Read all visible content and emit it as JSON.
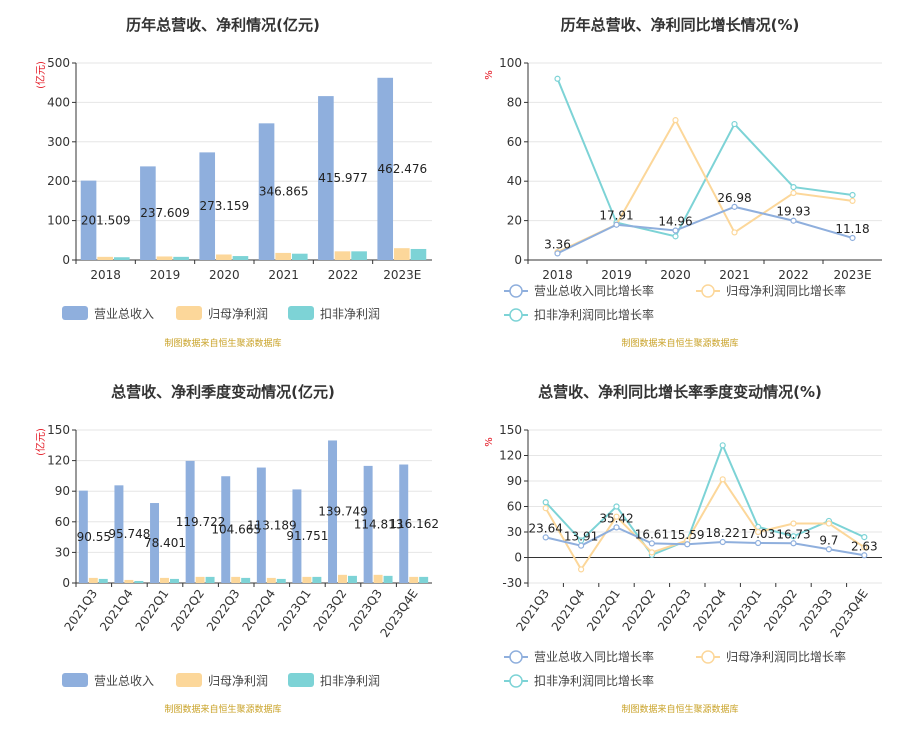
{
  "legends": {
    "bar": [
      "营业总收入",
      "归母净利润",
      "扣非净利润"
    ],
    "line": [
      "营业总收入同比增长率",
      "归母净利润同比增长率",
      "扣非净利润同比增长率"
    ]
  },
  "source_text": "制图数据来自恒生聚源数据库",
  "colors": {
    "revenue": "#8fafdd",
    "net_profit": "#fcd79a",
    "deducted_profit": "#7dd3d6",
    "axis": "#333333",
    "grid": "#e6e6e6",
    "unit": "#e3131f",
    "source": "#c9a227"
  },
  "chart_data": [
    {
      "type": "bar",
      "title": "历年总营收、净利情况(亿元)",
      "y_unit": "(亿元)",
      "categories": [
        "2018",
        "2019",
        "2020",
        "2021",
        "2022",
        "2023E"
      ],
      "ylim": [
        0,
        500
      ],
      "yticks": [
        0,
        100,
        200,
        300,
        400,
        500
      ],
      "grid": true,
      "legend_position": "bottom",
      "series": [
        {
          "name": "营业总收入",
          "values": [
            201.509,
            237.609,
            273.159,
            346.865,
            415.977,
            462.476
          ],
          "labels": [
            "201.509",
            "237.609",
            "273.159",
            "346.865",
            "415.977",
            "462.476"
          ]
        },
        {
          "name": "归母净利润",
          "values": [
            8,
            9,
            14,
            18,
            22,
            30
          ]
        },
        {
          "name": "扣非净利润",
          "values": [
            7,
            8,
            10,
            16,
            22,
            28
          ]
        }
      ]
    },
    {
      "type": "line",
      "title": "历年总营收、净利同比增长情况(%)",
      "y_unit": "%",
      "categories": [
        "2018",
        "2019",
        "2020",
        "2021",
        "2022",
        "2023E"
      ],
      "ylim": [
        0,
        100
      ],
      "yticks": [
        0,
        20,
        40,
        60,
        80,
        100
      ],
      "grid": true,
      "legend_position": "bottom",
      "series": [
        {
          "name": "营业总收入同比增长率",
          "values": [
            3.36,
            17.91,
            14.96,
            26.98,
            19.93,
            11.18
          ],
          "labels": [
            "3.36",
            "17.91",
            "14.96",
            "26.98",
            "19.93",
            "11.18"
          ]
        },
        {
          "name": "归母净利润同比增长率",
          "values": [
            4,
            18,
            71,
            14,
            34,
            30
          ]
        },
        {
          "name": "扣非净利润同比增长率",
          "values": [
            92,
            19,
            12,
            69,
            37,
            33
          ]
        }
      ]
    },
    {
      "type": "bar",
      "title": "总营收、净利季度变动情况(亿元)",
      "y_unit": "(亿元)",
      "categories": [
        "2021Q3",
        "2021Q4",
        "2022Q1",
        "2022Q2",
        "2022Q3",
        "2022Q4",
        "2023Q1",
        "2023Q2",
        "2023Q3",
        "2023Q4E"
      ],
      "ylim": [
        0,
        150
      ],
      "yticks": [
        0,
        30,
        60,
        90,
        120,
        150
      ],
      "grid": true,
      "legend_position": "bottom",
      "series": [
        {
          "name": "营业总收入",
          "values": [
            90.55,
            95.748,
            78.401,
            119.722,
            104.665,
            113.189,
            91.751,
            139.749,
            114.813,
            116.162
          ],
          "labels": [
            "90.55",
            "95.748",
            "78.401",
            "119.722",
            "104.665",
            "113.189",
            "91.751",
            "139.749",
            "114.813",
            "116.162"
          ]
        },
        {
          "name": "归母净利润",
          "values": [
            5,
            3,
            5,
            6,
            6,
            5,
            6,
            8,
            8,
            6
          ]
        },
        {
          "name": "扣非净利润",
          "values": [
            4,
            2,
            4,
            6,
            5,
            4,
            6,
            7,
            7,
            6
          ]
        }
      ]
    },
    {
      "type": "line",
      "title": "总营收、净利同比增长率季度变动情况(%)",
      "y_unit": "%",
      "categories": [
        "2021Q3",
        "2021Q4",
        "2022Q1",
        "2022Q2",
        "2022Q3",
        "2022Q4",
        "2023Q1",
        "2023Q2",
        "2023Q3",
        "2023Q4E"
      ],
      "ylim": [
        -30,
        150
      ],
      "yticks": [
        -30,
        0,
        30,
        60,
        90,
        120,
        150
      ],
      "grid": true,
      "legend_position": "bottom",
      "series": [
        {
          "name": "营业总收入同比增长率",
          "values": [
            23.64,
            13.91,
            35.42,
            16.61,
            15.59,
            18.22,
            17.03,
            16.73,
            9.7,
            2.63
          ],
          "labels": [
            "23.64",
            "13.91",
            "35.42",
            "16.61",
            "15.59",
            "18.22",
            "17.03",
            "16.73",
            "9.7",
            "2.63"
          ]
        },
        {
          "name": "归母净利润同比增长率",
          "values": [
            58,
            -14,
            48,
            6,
            20,
            92,
            30,
            40,
            40,
            12
          ]
        },
        {
          "name": "扣非净利润同比增长率",
          "values": [
            65,
            20,
            60,
            3,
            20,
            132,
            36,
            25,
            43,
            24
          ]
        }
      ]
    }
  ]
}
